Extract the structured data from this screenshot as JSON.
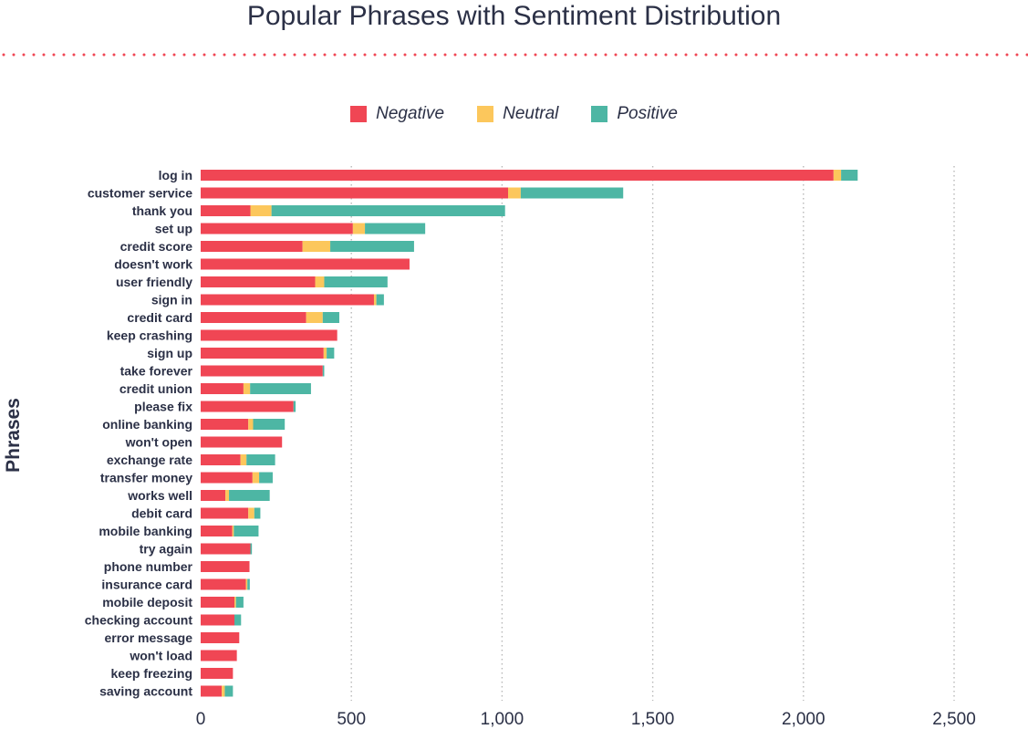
{
  "chart_data": {
    "type": "bar",
    "orientation": "horizontal",
    "stacked": true,
    "title": "Popular Phrases with Sentiment Distribution",
    "ylabel": "Phrases",
    "xlabel": "",
    "xlim": [
      0,
      2500
    ],
    "xticks": [
      0,
      500,
      1000,
      1500,
      2000,
      2500
    ],
    "xtick_labels": [
      "0",
      "500",
      "1,000",
      "1,500",
      "2,000",
      "2,500"
    ],
    "grid": "vertical dotted",
    "legend_position": "top-center",
    "categories": [
      "log in",
      "customer service",
      "thank you",
      "set up",
      "credit score",
      "doesn't work",
      "user friendly",
      "sign in",
      "credit card",
      "keep crashing",
      "sign up",
      "take forever",
      "credit union",
      "please fix",
      "online banking",
      "won't open",
      "exchange rate",
      "transfer money",
      "works well",
      "debit card",
      "mobile banking",
      "try again",
      "phone number",
      "insurance card",
      "mobile deposit",
      "checking account",
      "error message",
      "won't load",
      "keep freezing",
      "saving account"
    ],
    "series": [
      {
        "name": "Negative",
        "color": "#f04654",
        "values": [
          2100,
          1020,
          165,
          505,
          338,
          693,
          380,
          575,
          350,
          453,
          408,
          405,
          142,
          308,
          158,
          270,
          132,
          172,
          82,
          158,
          105,
          165,
          162,
          150,
          112,
          112,
          128,
          120,
          107,
          70
        ]
      },
      {
        "name": "Neutral",
        "color": "#fcc75c",
        "values": [
          25,
          42,
          70,
          40,
          92,
          0,
          30,
          8,
          55,
          0,
          10,
          0,
          22,
          0,
          16,
          0,
          20,
          22,
          12,
          20,
          5,
          0,
          0,
          5,
          5,
          0,
          0,
          0,
          0,
          10
        ]
      },
      {
        "name": "Positive",
        "color": "#4db6a4",
        "values": [
          55,
          340,
          775,
          200,
          278,
          0,
          210,
          25,
          55,
          0,
          25,
          5,
          202,
          7,
          105,
          0,
          95,
          45,
          135,
          20,
          82,
          5,
          0,
          8,
          25,
          22,
          0,
          0,
          0,
          27
        ]
      }
    ]
  }
}
